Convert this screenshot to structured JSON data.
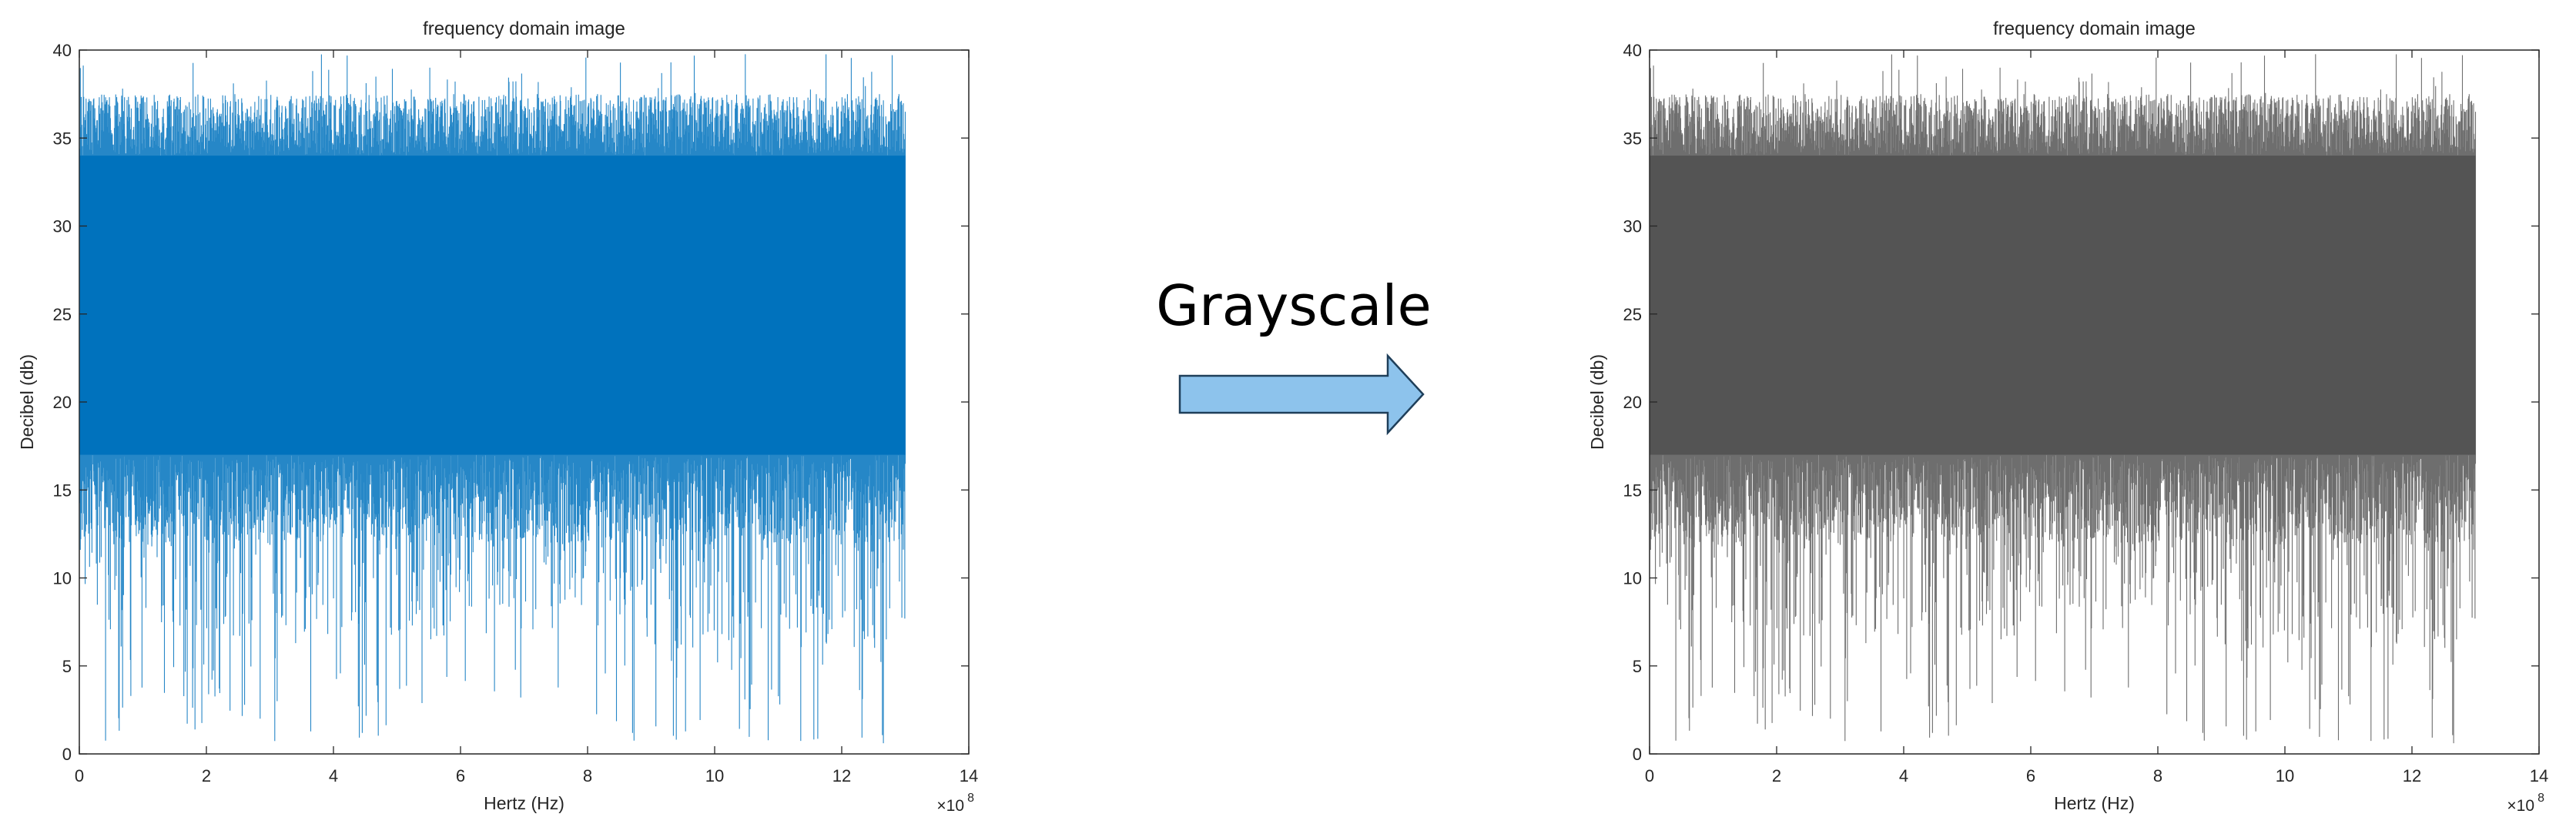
{
  "center_label": "Grayscale",
  "arrow": {
    "fill": "#8DC3EC",
    "stroke": "#1F3F5A"
  },
  "chart_data": [
    {
      "type": "line",
      "title": "frequency domain image",
      "xlabel": "Hertz  (Hz)",
      "ylabel": "Decibel (db)",
      "x_exponent_label": "×10",
      "x_exponent": "8",
      "xlim": [
        0,
        14
      ],
      "ylim": [
        0,
        40
      ],
      "xticks": [
        0,
        2,
        4,
        6,
        8,
        10,
        12,
        14
      ],
      "yticks": [
        0,
        5,
        10,
        15,
        20,
        25,
        30,
        35,
        40
      ],
      "series": [
        {
          "x_range": [
            0,
            13
          ],
          "band_low": 13,
          "band_high": 36,
          "min_dip": 0.5,
          "max_peak": 40,
          "color": "#0072BD"
        }
      ]
    },
    {
      "type": "line",
      "title": "frequency domain image",
      "xlabel": "Hertz (Hz)",
      "ylabel": "Decibel (db)",
      "x_exponent_label": "×10",
      "x_exponent": "8",
      "xlim": [
        0,
        14
      ],
      "ylim": [
        0,
        40
      ],
      "xticks": [
        0,
        2,
        4,
        6,
        8,
        10,
        12,
        14
      ],
      "yticks": [
        0,
        5,
        10,
        15,
        20,
        25,
        30,
        35,
        40
      ],
      "series": [
        {
          "x_range": [
            0,
            13
          ],
          "band_low": 13,
          "band_high": 36,
          "min_dip": 0.5,
          "max_peak": 40,
          "color": "#555555"
        }
      ]
    }
  ]
}
